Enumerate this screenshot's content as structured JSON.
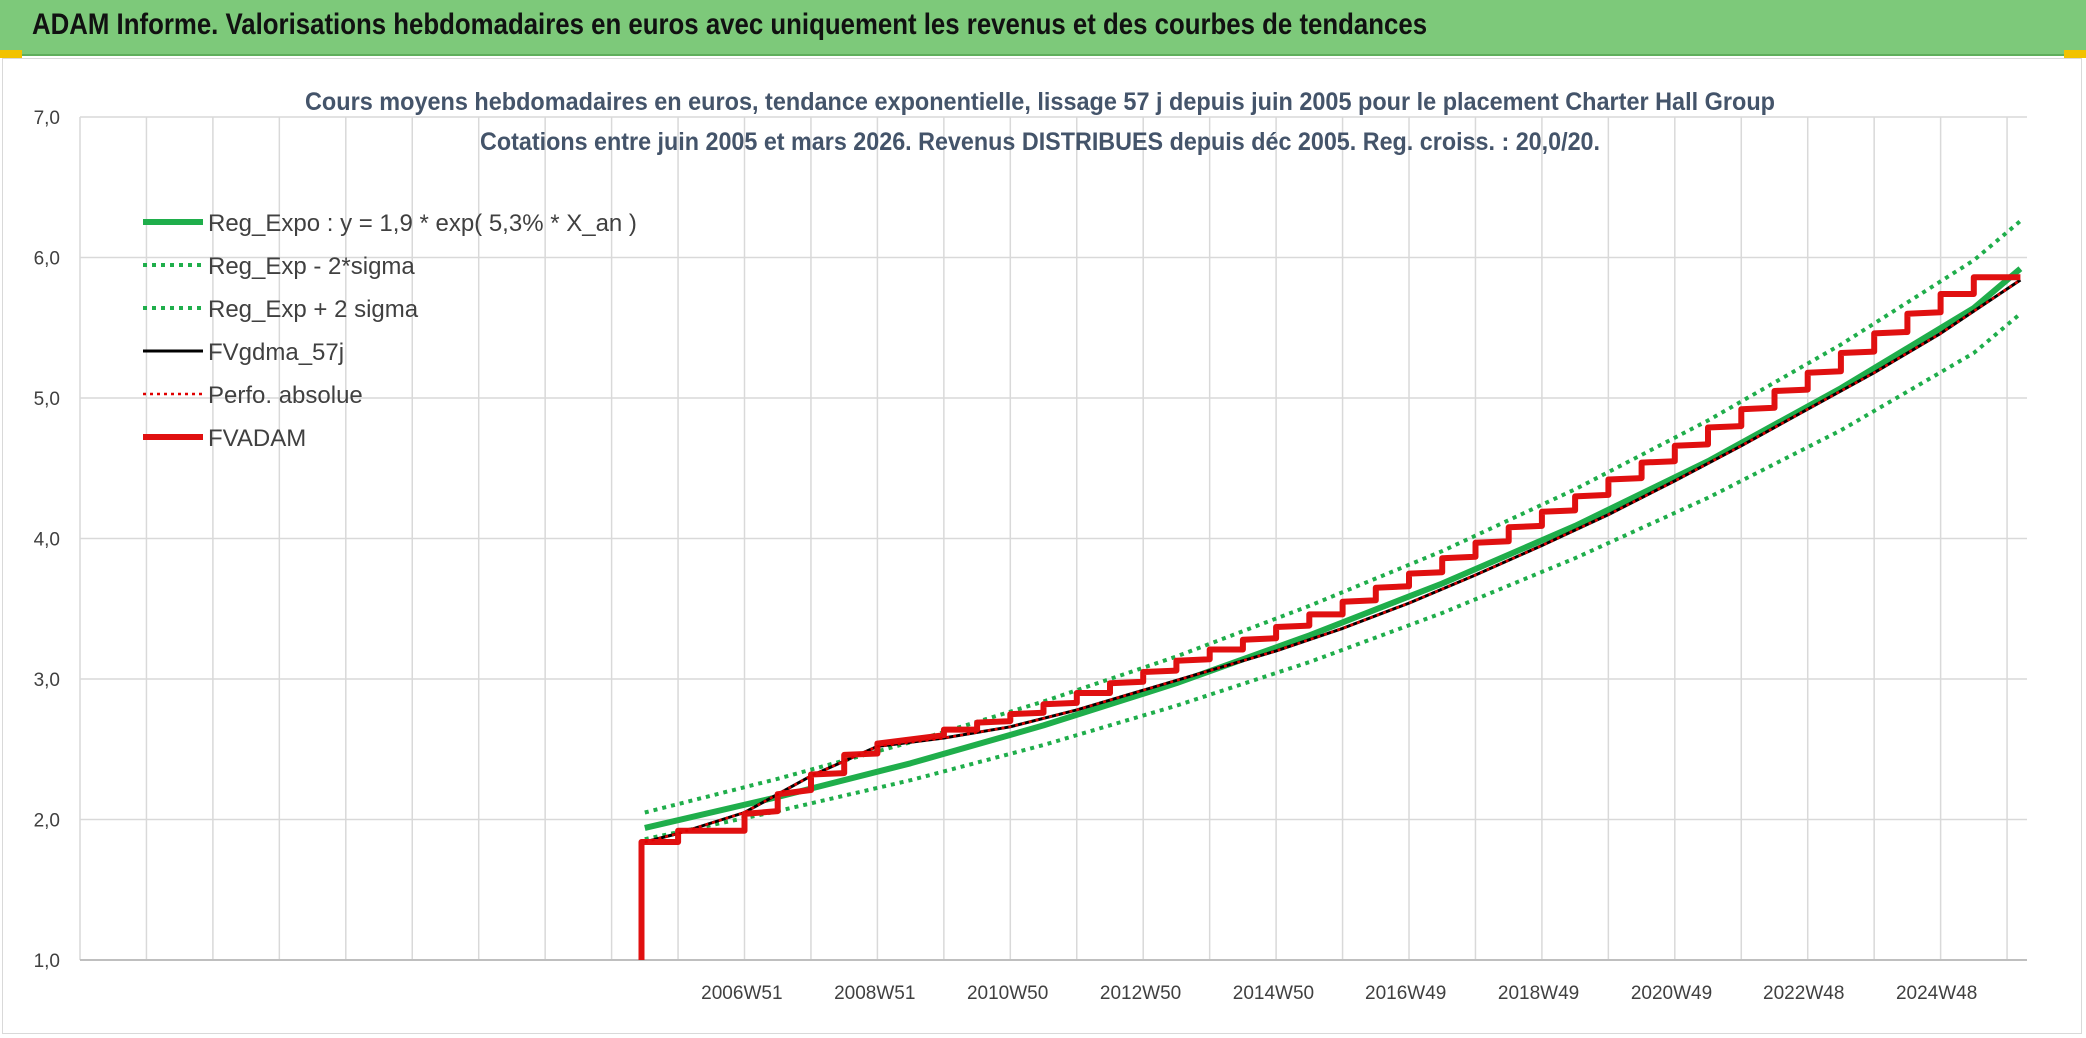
{
  "header": {
    "title": "ADAM Informe. Valorisations hebdomadaires en euros avec uniquement les revenus et des courbes de tendances"
  },
  "colors": {
    "banner": "#7dc97a",
    "reg_expo": "#1fae4b",
    "fvgdma": "#000000",
    "perfo": "#e00000",
    "fvadam": "#e01010",
    "grid": "#d9d9d9"
  },
  "chart_data": {
    "type": "line",
    "title_line1": "Cours moyens hebdomadaires en euros, tendance exponentielle, lissage 57 j depuis juin 2005 pour le placement Charter Hall Group",
    "title_line2": "Cotations entre juin 2005 et mars 2026. Revenus DISTRIBUES depuis déc 2005. Reg. croiss. : 20,0/20.",
    "xlabel": "",
    "ylabel": "",
    "ylim": [
      1.0,
      7.0
    ],
    "y_ticks": [
      "1,0",
      "2,0",
      "3,0",
      "4,0",
      "5,0",
      "6,0",
      "7,0"
    ],
    "x_ticks": [
      "2006W51",
      "2008W51",
      "2010W50",
      "2012W50",
      "2014W50",
      "2016W49",
      "2018W49",
      "2020W49",
      "2022W48",
      "2024W48"
    ],
    "x_tick_years": [
      2006.96,
      2008.96,
      2010.96,
      2012.96,
      2014.96,
      2016.95,
      2018.95,
      2020.95,
      2022.94,
      2024.94
    ],
    "xlim": [
      1997.0,
      2026.3
    ],
    "grid": true,
    "legend_position": "top-left",
    "series": [
      {
        "name": "Reg_Expo : y = 1,9 * exp( 5,3% *  X_an )",
        "style": "solid-thick",
        "x": [
          2005.5,
          2007.5,
          2009.5,
          2011.5,
          2013.5,
          2015.5,
          2017.5,
          2019.5,
          2021.5,
          2023.5,
          2025.5,
          2026.2
        ],
        "values": [
          1.94,
          2.16,
          2.4,
          2.67,
          2.97,
          3.31,
          3.68,
          4.09,
          4.55,
          5.07,
          5.64,
          5.92
        ]
      },
      {
        "name": "Reg_Exp - 2*sigma",
        "style": "dotted",
        "x": [
          2005.5,
          2007.5,
          2009.5,
          2011.5,
          2013.5,
          2015.5,
          2017.5,
          2019.5,
          2021.5,
          2023.5,
          2025.5,
          2026.2
        ],
        "values": [
          1.86,
          2.06,
          2.28,
          2.53,
          2.81,
          3.12,
          3.47,
          3.86,
          4.29,
          4.77,
          5.32,
          5.6
        ]
      },
      {
        "name": "Reg_Exp + 2 sigma",
        "style": "dotted",
        "x": [
          2005.5,
          2007.5,
          2009.5,
          2011.5,
          2013.5,
          2015.5,
          2017.5,
          2019.5,
          2021.5,
          2023.5,
          2025.5,
          2026.2
        ],
        "values": [
          2.05,
          2.29,
          2.55,
          2.84,
          3.16,
          3.52,
          3.91,
          4.35,
          4.84,
          5.38,
          5.98,
          6.26
        ]
      },
      {
        "name": "FVgdma_57j",
        "style": "solid-thin",
        "x": [
          2005.5,
          2006.0,
          2007.0,
          2008.0,
          2009.0,
          2010.0,
          2011.0,
          2012.0,
          2013.0,
          2014.0,
          2015.0,
          2016.0,
          2017.0,
          2018.0,
          2019.0,
          2020.0,
          2021.0,
          2022.0,
          2023.0,
          2024.0,
          2025.0,
          2026.2
        ],
        "values": [
          1.84,
          1.9,
          2.05,
          2.31,
          2.52,
          2.58,
          2.66,
          2.78,
          2.92,
          3.06,
          3.2,
          3.36,
          3.54,
          3.74,
          3.95,
          4.17,
          4.41,
          4.66,
          4.92,
          5.18,
          5.46,
          5.84
        ]
      },
      {
        "name": "Perfo. absolue",
        "style": "dotted-thin",
        "x": [
          2005.5,
          2006.0,
          2007.0,
          2008.0,
          2009.0,
          2010.0,
          2011.0,
          2012.0,
          2013.0,
          2014.0,
          2015.0,
          2016.0,
          2017.0,
          2018.0,
          2019.0,
          2020.0,
          2021.0,
          2022.0,
          2023.0,
          2024.0,
          2025.0,
          2026.2
        ],
        "values": [
          1.84,
          1.9,
          2.05,
          2.31,
          2.52,
          2.58,
          2.66,
          2.78,
          2.92,
          3.06,
          3.2,
          3.36,
          3.54,
          3.74,
          3.95,
          4.17,
          4.41,
          4.66,
          4.92,
          5.18,
          5.46,
          5.84
        ]
      },
      {
        "name": "FVADAM",
        "style": "solid-thick",
        "x": [
          2005.45,
          2005.45,
          2006.0,
          2006.0,
          2007.0,
          2007.0,
          2007.5,
          2007.5,
          2008.0,
          2008.0,
          2008.5,
          2008.5,
          2009.0,
          2009.0,
          2010.0,
          2010.0,
          2010.5,
          2010.5,
          2011.0,
          2011.0,
          2011.5,
          2011.5,
          2012.0,
          2012.0,
          2012.5,
          2012.5,
          2013.0,
          2013.0,
          2013.5,
          2013.5,
          2014.0,
          2014.0,
          2014.5,
          2014.5,
          2015.0,
          2015.0,
          2015.5,
          2015.5,
          2016.0,
          2016.0,
          2016.5,
          2016.5,
          2017.0,
          2017.0,
          2017.5,
          2017.5,
          2018.0,
          2018.0,
          2018.5,
          2018.5,
          2019.0,
          2019.0,
          2019.5,
          2019.5,
          2020.0,
          2020.0,
          2020.5,
          2020.5,
          2021.0,
          2021.0,
          2021.5,
          2021.5,
          2022.0,
          2022.0,
          2022.5,
          2022.5,
          2023.0,
          2023.0,
          2023.5,
          2023.5,
          2024.0,
          2024.0,
          2024.5,
          2024.5,
          2025.0,
          2025.0,
          2025.5,
          2025.5,
          2026.0,
          2026.0,
          2026.2
        ],
        "values": [
          1.0,
          1.84,
          1.84,
          1.92,
          1.92,
          2.04,
          2.06,
          2.18,
          2.21,
          2.32,
          2.33,
          2.46,
          2.47,
          2.54,
          2.6,
          2.64,
          2.64,
          2.69,
          2.7,
          2.75,
          2.76,
          2.82,
          2.83,
          2.9,
          2.9,
          2.97,
          2.98,
          3.05,
          3.06,
          3.13,
          3.14,
          3.21,
          3.21,
          3.28,
          3.29,
          3.37,
          3.38,
          3.46,
          3.46,
          3.55,
          3.56,
          3.65,
          3.66,
          3.75,
          3.76,
          3.86,
          3.87,
          3.97,
          3.98,
          4.08,
          4.09,
          4.19,
          4.2,
          4.3,
          4.31,
          4.42,
          4.43,
          4.54,
          4.55,
          4.66,
          4.67,
          4.79,
          4.8,
          4.92,
          4.93,
          5.05,
          5.06,
          5.18,
          5.19,
          5.32,
          5.33,
          5.46,
          5.47,
          5.6,
          5.61,
          5.74,
          5.74,
          5.86,
          5.86,
          5.86,
          5.86
        ]
      }
    ]
  }
}
